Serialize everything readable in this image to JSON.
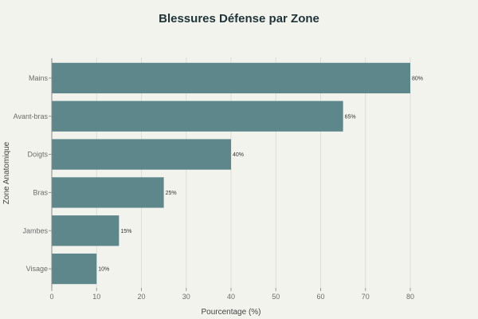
{
  "chart_data": {
    "type": "bar",
    "orientation": "horizontal",
    "title": "Blessures Défense par Zone",
    "xlabel": "Pourcentage (%)",
    "ylabel": "Zone Anatomique",
    "categories": [
      "Mains",
      "Avant-bras",
      "Doigts",
      "Bras",
      "Jambes",
      "Visage"
    ],
    "values": [
      80,
      65,
      40,
      25,
      15,
      10
    ],
    "data_labels": [
      "80%",
      "65%",
      "40%",
      "25%",
      "15%",
      "10%"
    ],
    "xlim": [
      0,
      80
    ],
    "xticks": [
      0,
      10,
      20,
      30,
      40,
      50,
      60,
      70,
      80
    ],
    "grid": true,
    "bar_color": "#5d878b",
    "background": "#f3f3ee"
  }
}
